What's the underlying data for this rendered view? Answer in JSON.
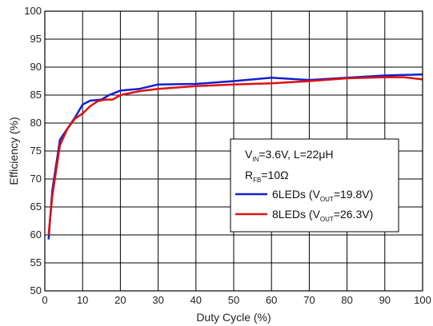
{
  "chart_data": {
    "type": "line",
    "xlabel": "Duty Cycle (%)",
    "ylabel": "Efficiency (%)",
    "xlim": [
      0,
      100
    ],
    "ylim": [
      50,
      100
    ],
    "xticks": [
      0,
      10,
      20,
      30,
      40,
      50,
      60,
      70,
      80,
      90,
      100
    ],
    "yticks": [
      50,
      55,
      60,
      65,
      70,
      75,
      80,
      85,
      90,
      95,
      100
    ],
    "grid": true,
    "legend_position": "center-right",
    "annotation": {
      "line1_main": "V",
      "line1_sub": "IN",
      "line1_rest": "=3.6V, L=22μH",
      "line2_main": "R",
      "line2_sub": "FB",
      "line2_rest": "=10Ω"
    },
    "series": [
      {
        "name": "6LEDs (VOUT=19.8V)",
        "label_pre": "6LEDs (V",
        "label_sub": "OUT",
        "label_post": "=19.8V)",
        "color": "#1020d0",
        "x": [
          1,
          2,
          4,
          6,
          8,
          10,
          12,
          15,
          17,
          20,
          25,
          30,
          40,
          50,
          60,
          70,
          80,
          90,
          100
        ],
        "y": [
          59.2,
          68,
          77,
          79,
          81,
          83.3,
          84,
          84.2,
          85,
          85.8,
          86.1,
          86.9,
          87,
          87.5,
          88.1,
          87.7,
          88.1,
          88.5,
          88.7
        ]
      },
      {
        "name": "8LEDs (VOUT=26.3V)",
        "label_pre": "8LEDs (V",
        "label_sub": "OUT",
        "label_post": "=26.3V)",
        "color": "#e01010",
        "x": [
          1,
          2,
          4,
          6,
          8,
          10,
          12,
          14,
          16,
          18,
          20,
          25,
          30,
          40,
          50,
          60,
          70,
          80,
          90,
          95,
          100
        ],
        "y": [
          60,
          67,
          76,
          79,
          80.8,
          81.7,
          83,
          83.9,
          84.2,
          84.2,
          85,
          85.7,
          86.1,
          86.6,
          86.9,
          87.1,
          87.5,
          88,
          88.2,
          88.2,
          87.8
        ]
      }
    ]
  }
}
